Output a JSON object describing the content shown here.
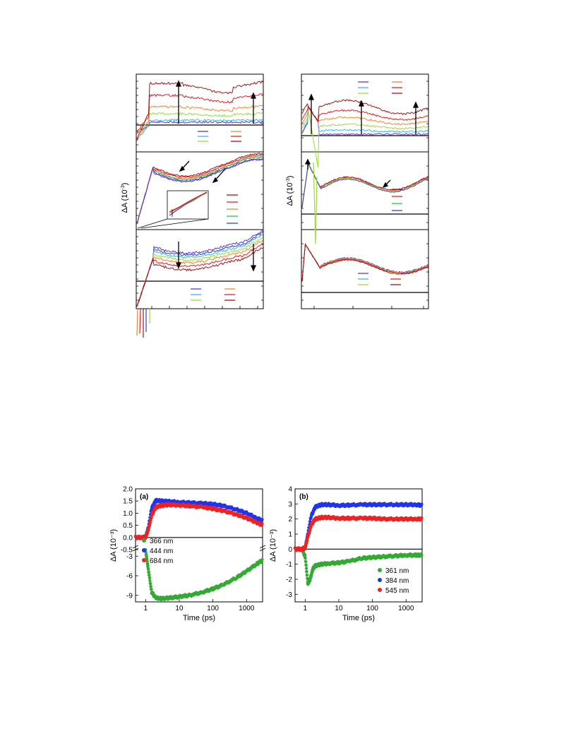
{
  "figure_top": {
    "ylabel": "ΔA (10",
    "ylabel_exp": "-3",
    "ylabel_close": ")"
  },
  "colors": {
    "purple": "#6633cc",
    "blue": "#3344cc",
    "cyan": "#33bbee",
    "lime": "#99dd33",
    "green": "#33bb55",
    "orange": "#ee8833",
    "red": "#dd2222",
    "darkred": "#aa1111"
  },
  "chart_data": [
    {
      "panel": "a",
      "type": "scatter",
      "xlabel": "Time (ps)",
      "ylabel": "ΔA (10⁻³)",
      "xscale": "log",
      "xlim": [
        0.5,
        3000
      ],
      "x_ticks": [
        "1",
        "10",
        "100",
        "1000"
      ],
      "upper": {
        "ylim": [
          -0.5,
          2.0
        ],
        "y_ticks": [
          "2.0",
          "1.5",
          "1.0",
          "0.5",
          "0.0",
          "-0.5"
        ],
        "series": [
          {
            "name": "444 nm",
            "color": "#2233ee",
            "x": [
              0.5,
              0.8,
              1.0,
              1.2,
              1.5,
              2,
              3,
              5,
              10,
              20,
              50,
              100,
              200,
              500,
              1000,
              2000,
              3000
            ],
            "y": [
              0,
              0,
              0.02,
              0.4,
              1.2,
              1.52,
              1.5,
              1.48,
              1.45,
              1.43,
              1.4,
              1.37,
              1.3,
              1.15,
              1.0,
              0.8,
              0.68
            ]
          },
          {
            "name": "684 nm",
            "color": "#ee2222",
            "x": [
              0.5,
              0.8,
              1.0,
              1.2,
              1.5,
              2,
              3,
              5,
              10,
              20,
              50,
              100,
              200,
              500,
              1000,
              2000,
              3000
            ],
            "y": [
              0,
              0,
              0.02,
              0.3,
              0.9,
              1.25,
              1.32,
              1.35,
              1.33,
              1.3,
              1.25,
              1.18,
              1.1,
              0.95,
              0.8,
              0.62,
              0.5
            ]
          }
        ]
      },
      "lower": {
        "ylim": [
          -10,
          -2
        ],
        "y_ticks": [
          "-3",
          "-6",
          "-9"
        ],
        "series": [
          {
            "name": "366 nm",
            "color": "#33aa33",
            "x": [
              1.0,
              1.2,
              1.5,
              2,
              3,
              5,
              10,
              20,
              50,
              100,
              200,
              500,
              1000,
              2000,
              3000
            ],
            "y": [
              -2.2,
              -5.0,
              -8.5,
              -9.4,
              -9.5,
              -9.4,
              -9.2,
              -9.0,
              -8.5,
              -8.0,
              -7.4,
              -6.3,
              -5.3,
              -4.2,
              -3.6
            ]
          }
        ]
      },
      "legend": [
        "366 nm",
        "444 nm",
        "684 nm"
      ]
    },
    {
      "panel": "b",
      "type": "scatter",
      "xlabel": "Time (ps)",
      "ylabel": "ΔA (10⁻³)",
      "xscale": "log",
      "xlim": [
        0.5,
        3000
      ],
      "x_ticks": [
        "1",
        "10",
        "100",
        "1000"
      ],
      "ylim": [
        -3.5,
        4
      ],
      "y_ticks": [
        "4",
        "3",
        "2",
        "1",
        "0",
        "-1",
        "-2",
        "-3"
      ],
      "series": [
        {
          "name": "361 nm",
          "color": "#33aa33",
          "x": [
            0.5,
            0.8,
            1.0,
            1.2,
            1.4,
            1.7,
            2,
            3,
            5,
            10,
            20,
            50,
            100,
            200,
            500,
            1000,
            2000,
            3000
          ],
          "y": [
            0,
            0,
            -0.5,
            -2.3,
            -2.0,
            -1.3,
            -1.1,
            -1.0,
            -0.95,
            -0.9,
            -0.8,
            -0.6,
            -0.55,
            -0.5,
            -0.45,
            -0.4,
            -0.4,
            -0.4
          ]
        },
        {
          "name": "384 nm",
          "color": "#2233ee",
          "x": [
            0.5,
            0.8,
            1.0,
            1.2,
            1.5,
            2,
            3,
            5,
            10,
            20,
            50,
            100,
            200,
            500,
            1000,
            2000,
            3000
          ],
          "y": [
            0,
            0,
            0.1,
            1.0,
            2.2,
            2.8,
            2.95,
            2.95,
            2.9,
            2.92,
            2.95,
            2.95,
            2.95,
            2.95,
            2.95,
            2.95,
            2.9
          ]
        },
        {
          "name": "545 nm",
          "color": "#ee2222",
          "x": [
            0.5,
            0.8,
            1.0,
            1.2,
            1.5,
            2,
            3,
            5,
            10,
            20,
            50,
            100,
            200,
            500,
            1000,
            2000,
            3000
          ],
          "y": [
            0,
            0,
            0.1,
            0.8,
            1.6,
            2.0,
            2.1,
            2.1,
            2.05,
            2.05,
            2.05,
            2.05,
            2.0,
            2.0,
            2.0,
            2.0,
            2.0
          ]
        }
      ],
      "legend": [
        "361 nm",
        "384 nm",
        "545 nm"
      ]
    }
  ]
}
